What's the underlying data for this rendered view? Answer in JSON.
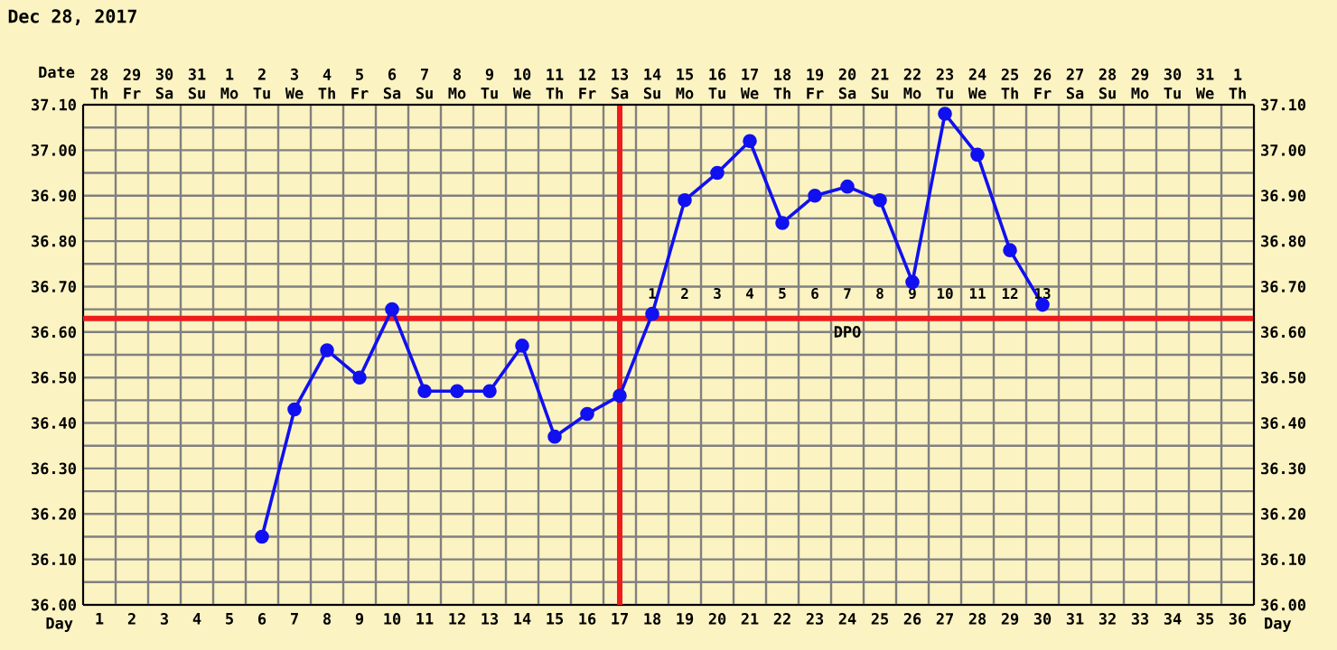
{
  "chart_data": {
    "type": "line",
    "title": "Dec 28, 2017",
    "xlabel": "Day",
    "x2label": "Date",
    "x": [
      6,
      7,
      8,
      9,
      10,
      11,
      12,
      13,
      14,
      15,
      16,
      17,
      18,
      19,
      20,
      21,
      22,
      23,
      24,
      25,
      26,
      27,
      28,
      29,
      30
    ],
    "series": [
      {
        "color": "#1010f0",
        "values": [
          36.15,
          36.43,
          36.56,
          36.5,
          36.65,
          36.47,
          36.47,
          36.47,
          36.57,
          36.37,
          36.42,
          36.46,
          36.64,
          36.89,
          36.95,
          37.02,
          36.84,
          36.9,
          36.92,
          36.89,
          36.71,
          37.08,
          36.99,
          36.78,
          36.66
        ]
      }
    ],
    "marker": "circle",
    "line_style": "solid",
    "grid": true,
    "xlim": [
      0.5,
      36.5
    ],
    "xticks": [
      1,
      2,
      3,
      4,
      5,
      6,
      7,
      8,
      9,
      10,
      11,
      12,
      13,
      14,
      15,
      16,
      17,
      18,
      19,
      20,
      21,
      22,
      23,
      24,
      25,
      26,
      27,
      28,
      29,
      30,
      31,
      32,
      33,
      34,
      35,
      36
    ],
    "ylim": [
      36.0,
      37.1
    ],
    "yticks": [
      {
        "value": 36.0,
        "label": "36.00"
      },
      {
        "value": 36.1,
        "label": "36.10"
      },
      {
        "value": 36.2,
        "label": "36.20"
      },
      {
        "value": 36.3,
        "label": "36.30"
      },
      {
        "value": 36.4,
        "label": "36.40"
      },
      {
        "value": 36.5,
        "label": "36.50"
      },
      {
        "value": 36.6,
        "label": "36.60"
      },
      {
        "value": 36.7,
        "label": "36.70"
      },
      {
        "value": 36.8,
        "label": "36.80"
      },
      {
        "value": 36.9,
        "label": "36.90"
      },
      {
        "value": 37.0,
        "label": "37.00"
      },
      {
        "value": 37.1,
        "label": "37.10"
      }
    ],
    "y2lim": [
      36.0,
      37.1
    ],
    "y2ticks": [
      {
        "value": 36.0,
        "label": "36.00"
      },
      {
        "value": 36.1,
        "label": "36.10"
      },
      {
        "value": 36.2,
        "label": "36.20"
      },
      {
        "value": 36.3,
        "label": "36.30"
      },
      {
        "value": 36.4,
        "label": "36.40"
      },
      {
        "value": 36.5,
        "label": "36.50"
      },
      {
        "value": 36.6,
        "label": "36.60"
      },
      {
        "value": 36.7,
        "label": "36.70"
      },
      {
        "value": 36.8,
        "label": "36.80"
      },
      {
        "value": 36.9,
        "label": "36.90"
      },
      {
        "value": 37.0,
        "label": "37.00"
      },
      {
        "value": 37.1,
        "label": "37.10"
      }
    ],
    "ref_lines": [
      {
        "axis": "y",
        "value": 36.63,
        "color": "#ee1c1c"
      },
      {
        "axis": "x",
        "value": 17,
        "color": "#ee1c1c"
      }
    ],
    "annotations": [
      "28 Th",
      "29 Fr",
      "30 Sa",
      "31 Su",
      "1 Mo",
      "2 Tu",
      "3 We",
      "4 Th",
      "5 Fr",
      "6 Sa",
      "7 Su",
      "8 Mo",
      "9 Tu",
      "10 We",
      "11 Th",
      "12 Fr",
      "13 Sa",
      "14 Su",
      "15 Mo",
      "16 Tu",
      "17 We",
      "18 Th",
      "19 Fr",
      "20 Sa",
      "21 Su",
      "22 Mo",
      "23 Tu",
      "24 We",
      "25 Th",
      "26 Fr",
      "27 Sa",
      "28 Su",
      "29 Mo",
      "30 Tu",
      "31 We",
      "1 Th",
      "1",
      "2",
      "3",
      "4",
      "5",
      "6",
      "7",
      "8",
      "9",
      "10",
      "11",
      "12",
      "13",
      "DPO"
    ]
  }
}
